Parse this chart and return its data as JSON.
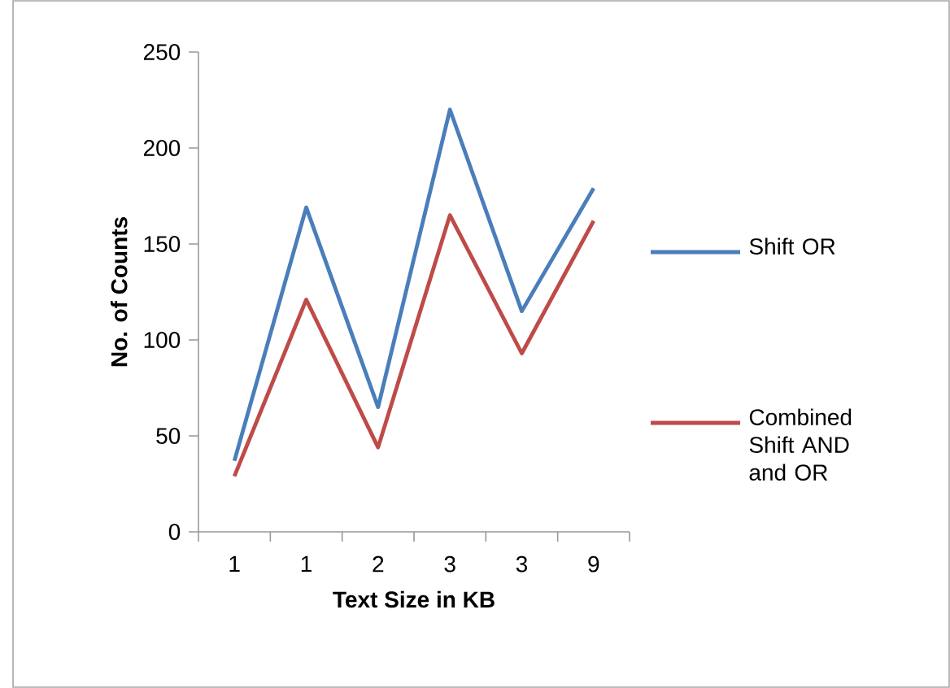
{
  "chart_data": {
    "type": "line",
    "xlabel": "Text Size in KB",
    "ylabel": "No. of Counts",
    "categories": [
      "1",
      "1",
      "2",
      "3",
      "3",
      "9"
    ],
    "series": [
      {
        "name": "Shift OR",
        "color": "#4a7ebb",
        "values": [
          37,
          169,
          65,
          220,
          115,
          179
        ]
      },
      {
        "name": "Combined Shift AND and OR",
        "color": "#be4b48",
        "values": [
          29,
          121,
          44,
          165,
          93,
          162
        ]
      }
    ],
    "ylim": [
      0,
      250
    ],
    "yticks": [
      0,
      50,
      100,
      150,
      200,
      250
    ],
    "grid": false,
    "legend": "right",
    "marker": "none",
    "line_style": "solid"
  }
}
